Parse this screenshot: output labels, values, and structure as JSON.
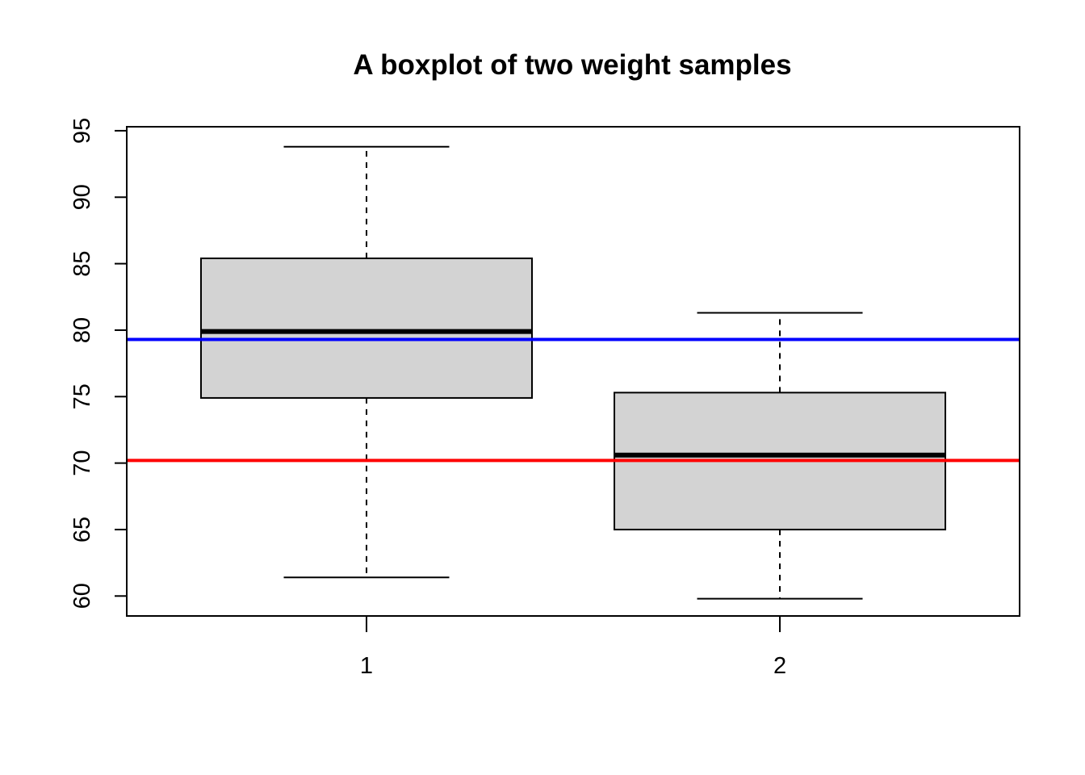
{
  "chart_data": {
    "type": "boxplot",
    "title": "A boxplot of two weight samples",
    "xlabel": "",
    "ylabel": "",
    "categories": [
      "1",
      "2"
    ],
    "boxes": [
      {
        "category": "1",
        "whisker_low": 61.4,
        "q1": 74.9,
        "median": 79.9,
        "q3": 85.4,
        "whisker_high": 93.8
      },
      {
        "category": "2",
        "whisker_low": 59.8,
        "q1": 65.0,
        "median": 70.6,
        "q3": 75.3,
        "whisker_high": 81.3
      }
    ],
    "y_ticks": [
      60,
      65,
      70,
      75,
      80,
      85,
      90,
      95
    ],
    "ylim": [
      58.5,
      95.3
    ],
    "xlim": [
      0.42,
      2.58
    ],
    "reference_lines": [
      {
        "y": 79.3,
        "color": "#0000ff"
      },
      {
        "y": 70.2,
        "color": "#ff0000"
      }
    ],
    "box_fill": "#d3d3d3",
    "grid": false
  }
}
